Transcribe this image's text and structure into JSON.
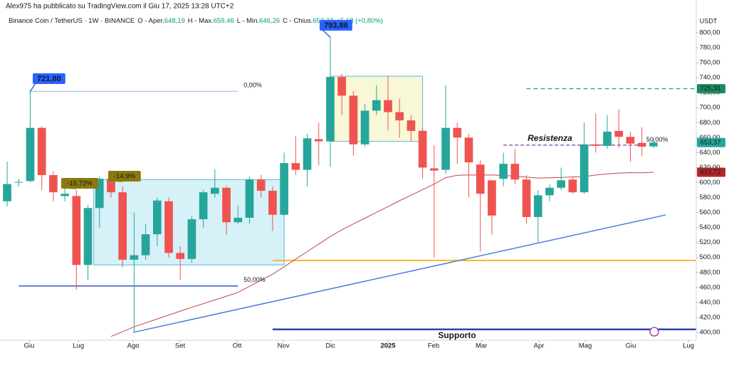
{
  "header": {
    "byline": "Alex975 ha pubblicato su TradingView.com il Giu 17, 2025 13:28 UTC+2",
    "symbol": "Binance Coin / TetherUS · 1W · BINANCE",
    "ohlc": [
      {
        "name": "O - Aper.",
        "value": "648,19"
      },
      {
        "name": "H - Max.",
        "value": "659,46"
      },
      {
        "name": "L - Min.",
        "value": "646,26"
      },
      {
        "name": "C - Chius.",
        "value": "653,37"
      }
    ],
    "change": "+5,18 (+0,80%)"
  },
  "chart_data": {
    "type": "candlestick",
    "up_color": "#26a69a",
    "down_color": "#ef5350",
    "grid": false,
    "categories": [
      null,
      null,
      null,
      null,
      null,
      null,
      null,
      null,
      null,
      null,
      null,
      null,
      null,
      null,
      null,
      null,
      null,
      null,
      null,
      null,
      null,
      null,
      null,
      null,
      null,
      null,
      null,
      null,
      null,
      null,
      null,
      null,
      null,
      null,
      null,
      null,
      null,
      null,
      null,
      null,
      null,
      null,
      null,
      null,
      null,
      null,
      null,
      null,
      null,
      null,
      null,
      null,
      null,
      null,
      null,
      null,
      null
    ],
    "open": [
      575,
      600,
      602,
      673,
      610,
      582,
      582,
      490,
      566,
      605,
      587,
      497,
      503,
      531,
      575,
      506,
      498,
      551,
      585,
      593,
      547,
      553,
      604,
      589,
      557,
      626,
      617,
      658,
      655,
      741,
      716,
      651,
      696,
      710,
      694,
      683,
      669,
      619,
      617,
      673,
      660,
      624,
      603,
      605,
      625,
      604,
      554,
      583,
      593,
      604,
      587,
      651,
      649,
      669,
      661,
      653,
      648.19
    ],
    "high": [
      628,
      605,
      721.8,
      675,
      615,
      595,
      590,
      570,
      608,
      610,
      595,
      560,
      545,
      580,
      580,
      515,
      555,
      590,
      618,
      596,
      570,
      608,
      610,
      595,
      640,
      662,
      665,
      680,
      793.86,
      745,
      722,
      705,
      730,
      742,
      712,
      690,
      673,
      650,
      730,
      680,
      665,
      630,
      603,
      640,
      645,
      610,
      590,
      597,
      620,
      607,
      680,
      692,
      690,
      698,
      668,
      674,
      659.46
    ],
    "low": [
      568,
      595,
      600,
      590,
      575,
      575,
      457,
      470,
      540,
      580,
      487,
      400,
      497,
      515,
      500,
      470,
      493,
      540,
      580,
      530,
      545,
      545,
      580,
      535,
      555,
      610,
      595,
      623,
      621,
      690,
      636,
      648,
      690,
      670,
      660,
      655,
      605,
      500,
      612,
      625,
      580,
      508,
      530,
      595,
      598,
      545,
      520,
      575,
      590,
      585,
      585,
      640,
      645,
      646,
      628,
      636,
      646.26
    ],
    "close": [
      598,
      601,
      673,
      610,
      587,
      585,
      490,
      566,
      605,
      587,
      497,
      503,
      531,
      576,
      506,
      498,
      551,
      587,
      593,
      547,
      553,
      604,
      589,
      557,
      626,
      617,
      659,
      655,
      741,
      716,
      651,
      696,
      710,
      694,
      683,
      669,
      620,
      616,
      673,
      660,
      627,
      585,
      556,
      625,
      604,
      554,
      583,
      593,
      603,
      587,
      651,
      649,
      668,
      661,
      652,
      648,
      653.37
    ],
    "ma": {
      "color": "#c2454a",
      "values": [
        null,
        null,
        null,
        null,
        null,
        null,
        null,
        null,
        null,
        394.5,
        401,
        407.4,
        412.6,
        417.9,
        423.1,
        428.4,
        433.4,
        438.3,
        443.3,
        448.3,
        453.4,
        461.5,
        469.6,
        477.7,
        487.6,
        497.7,
        507.8,
        517.9,
        528,
        537,
        544.8,
        552.5,
        560.3,
        567.9,
        575.7,
        583.1,
        590.6,
        598,
        606.5,
        609.7,
        610,
        610,
        610,
        609.6,
        608.5,
        607.4,
        606,
        606.4,
        606.9,
        607.5,
        608,
        610,
        611.7,
        612.5,
        613.3,
        613,
        613.72
      ]
    },
    "xlim": [
      -0.62,
      59.71
    ],
    "xticks": [
      {
        "value": 1.91,
        "label": "Giu"
      },
      {
        "value": 6.17,
        "label": "Lug"
      },
      {
        "value": 10.92,
        "label": "Ago"
      },
      {
        "value": 14.99,
        "label": "Set"
      },
      {
        "value": 19.93,
        "label": "Ott"
      },
      {
        "value": 23.94,
        "label": "Nov"
      },
      {
        "value": 28.01,
        "label": "Dic"
      },
      {
        "value": 33,
        "label": "2025"
      },
      {
        "value": 36.95,
        "label": "Feb"
      },
      {
        "value": 41.09,
        "label": "Mar"
      },
      {
        "value": 46.08,
        "label": "Apr"
      },
      {
        "value": 50.09,
        "label": "Mag"
      },
      {
        "value": 54.04,
        "label": "Giu"
      },
      {
        "value": 59.04,
        "label": "Lug"
      }
    ],
    "ylim": [
      389.5,
      826.6
    ],
    "y_axis_label": "USDT",
    "yticks": [
      {
        "value": 400,
        "label": "400,00"
      },
      {
        "value": 420,
        "label": "420,00"
      },
      {
        "value": 440,
        "label": "440,00"
      },
      {
        "value": 460,
        "label": "460,00"
      },
      {
        "value": 480,
        "label": "480,00"
      },
      {
        "value": 500,
        "label": "500,00"
      },
      {
        "value": 520,
        "label": "520,00"
      },
      {
        "value": 540,
        "label": "540,00"
      },
      {
        "value": 560,
        "label": "560,00"
      },
      {
        "value": 580,
        "label": "580,00"
      },
      {
        "value": 600,
        "label": "600,00"
      },
      {
        "value": 620,
        "label": "620,00"
      },
      {
        "value": 640,
        "label": "640,00"
      },
      {
        "value": 660,
        "label": "660,00"
      },
      {
        "value": 680,
        "label": "680,00"
      },
      {
        "value": 700,
        "label": "700,00"
      },
      {
        "value": 720,
        "label": "720,00"
      },
      {
        "value": 740,
        "label": "740,00"
      },
      {
        "value": 760,
        "label": "760,00"
      },
      {
        "value": 780,
        "label": "780,00"
      },
      {
        "value": 800,
        "label": "800,00"
      }
    ],
    "price_tags": [
      {
        "value": 725.31,
        "label": "725,31",
        "color": "#1e8a5e"
      },
      {
        "value": 653.37,
        "label": "653,37",
        "color": "#26a69a"
      },
      {
        "value": 613.72,
        "label": "613,72",
        "color": "#b2262b"
      }
    ],
    "callouts": [
      {
        "value": 721.8,
        "label": "721,80",
        "color": "#2962ff"
      },
      {
        "value": 793.86,
        "label": "793,86",
        "color": "#2962ff"
      },
      {
        "value": -15.72,
        "label": "-15,72%",
        "color": "#8a7a0c"
      },
      {
        "value": -14.9,
        "label": "-14,9%",
        "color": "#8a7a0c"
      }
    ],
    "drawings": [
      {
        "kind": "box",
        "from": 7.5,
        "to": 24,
        "top": 604,
        "bottom": 490,
        "color": "#5ab8d8",
        "fill": "#d6f1f8"
      },
      {
        "kind": "box",
        "from": 28,
        "to": 36,
        "top": 742,
        "bottom": 655,
        "color": "#5ab8d8",
        "fill": "#f8f7d6"
      },
      {
        "kind": "hline",
        "from": 1.9,
        "to": 20,
        "price": 721.8,
        "color": "#9bb4e8",
        "width": 1,
        "label": "0,00%"
      },
      {
        "kind": "hline",
        "from": 1,
        "to": 20,
        "price": 462,
        "color": "#3656c9",
        "width": 1.5,
        "label": "50,00%"
      },
      {
        "kind": "hline",
        "from": 23,
        "to": 59.71,
        "price": 496,
        "color": "#f5b730",
        "width": 2
      },
      {
        "kind": "hline",
        "from": 23,
        "to": 59.71,
        "price": 404,
        "color": "#2a46b0",
        "width": 2.5,
        "label": "Supporto"
      },
      {
        "kind": "hline",
        "from": 45,
        "to": 59.71,
        "price": 725.31,
        "color": "#2aa56e",
        "width": 1.3,
        "dash": "6 4"
      },
      {
        "kind": "hline",
        "from": 43,
        "to": 55.2,
        "price": 650,
        "color": "#7a3d9a",
        "width": 1.3,
        "dash": "5 3",
        "label": "Resistenza",
        "label2": "50,00%"
      },
      {
        "kind": "line",
        "x": [
          10.92,
          57.07
        ],
        "y": [
          400,
          556.8
        ],
        "color": "#4a7fd8",
        "width": 1.5
      }
    ]
  }
}
